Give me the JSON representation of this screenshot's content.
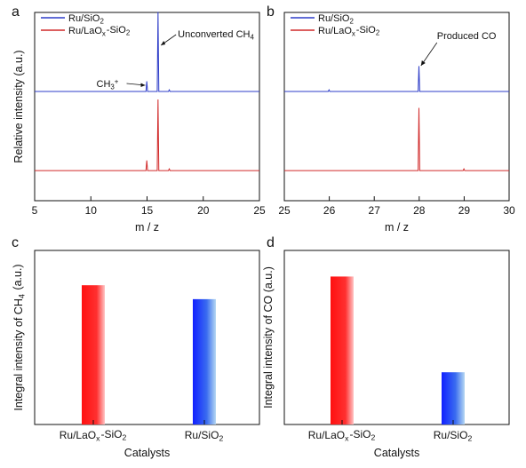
{
  "chart_data": [
    {
      "panel": "a",
      "type": "line",
      "xlabel": "m / z",
      "ylabel": "Relative intensity (a.u.)",
      "xlim": [
        5,
        25
      ],
      "xticks": [
        "5",
        "10",
        "15",
        "20",
        "25"
      ],
      "legend": {
        "placement": "top-left",
        "entries": [
          "Ru/SiO2",
          "Ru/LaOx-SiO2"
        ]
      },
      "colors": {
        "Ru/SiO2": "#2e3dc8",
        "Ru/LaOx-SiO2": "#d12a2a"
      },
      "annotations": [
        {
          "text": "Unconverted CH4",
          "x": 16
        },
        {
          "text": "CH3+",
          "x": 15
        }
      ],
      "series": [
        {
          "name": "Ru/SiO2",
          "baseline": 0.62,
          "peaks": [
            {
              "x": 15,
              "h": 0.06
            },
            {
              "x": 16,
              "h": 0.47
            },
            {
              "x": 17,
              "h": 0.01
            }
          ]
        },
        {
          "name": "Ru/LaOx-SiO2",
          "baseline": 0.0,
          "peaks": [
            {
              "x": 15,
              "h": 0.06
            },
            {
              "x": 16,
              "h": 0.42
            },
            {
              "x": 17,
              "h": 0.01
            }
          ]
        }
      ]
    },
    {
      "panel": "b",
      "type": "line",
      "xlabel": "m / z",
      "ylabel": "",
      "xlim": [
        25,
        30
      ],
      "xticks": [
        "25",
        "26",
        "27",
        "28",
        "29",
        "30"
      ],
      "legend": {
        "placement": "top-left",
        "entries": [
          "Ru/SiO2",
          "Ru/LaOx-SiO2"
        ]
      },
      "colors": {
        "Ru/SiO2": "#2e3dc8",
        "Ru/LaOx-SiO2": "#d12a2a"
      },
      "annotations": [
        {
          "text": "Produced CO",
          "x": 28
        }
      ],
      "series": [
        {
          "name": "Ru/SiO2",
          "baseline": 0.6,
          "peaks": [
            {
              "x": 26,
              "h": 0.01
            },
            {
              "x": 28,
              "h": 0.15
            }
          ]
        },
        {
          "name": "Ru/LaOx-SiO2",
          "baseline": 0.0,
          "peaks": [
            {
              "x": 28,
              "h": 0.37
            },
            {
              "x": 29,
              "h": 0.01
            }
          ]
        }
      ]
    },
    {
      "panel": "c",
      "type": "bar",
      "xlabel": "Catalysts",
      "ylabel": "Integral intensity of CH4 (a.u.)",
      "categories": [
        "Ru/LaOx-SiO2",
        "Ru/SiO2"
      ],
      "values": [
        0.8,
        0.72
      ],
      "ylim": [
        0,
        1
      ],
      "colors": [
        "#ff1a1a",
        "#1a2dff"
      ]
    },
    {
      "panel": "d",
      "type": "bar",
      "xlabel": "Catalysts",
      "ylabel": "Integral intensity of CO (a.u.)",
      "categories": [
        "Ru/LaOx-SiO2",
        "Ru/SiO2"
      ],
      "values": [
        0.85,
        0.3
      ],
      "ylim": [
        0,
        1
      ],
      "colors": [
        "#ff1a1a",
        "#1a2dff"
      ]
    }
  ]
}
